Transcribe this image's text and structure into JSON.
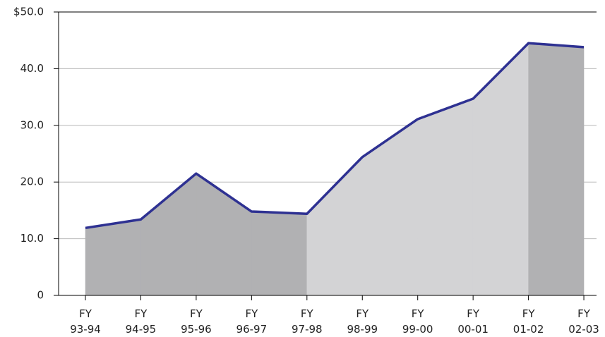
{
  "chart_data": {
    "type": "area",
    "categories": [
      "FY\n93-94",
      "FY\n94-95",
      "FY\n95-96",
      "FY\n96-97",
      "FY\n97-98",
      "FY\n98-99",
      "FY\n99-00",
      "FY\n00-01",
      "FY\n01-02",
      "FY\n02-03"
    ],
    "values": [
      11.9,
      13.4,
      21.5,
      14.8,
      14.4,
      24.4,
      31.1,
      34.7,
      44.5,
      43.8
    ],
    "color": "#2e3192",
    "segment_colors": [
      "#b1b1b3",
      "#b1b1b3",
      "#b1b1b3",
      "#b1b1b3",
      "#d3d3d5",
      "#d3d3d5",
      "#d3d3d5",
      "#d3d3d5",
      "#b1b1b3"
    ],
    "ylim": [
      0,
      50
    ],
    "yticks": [
      0,
      {
        "value": 10,
        "label": "10.0"
      },
      {
        "value": 20,
        "label": "20.0"
      },
      {
        "value": 30,
        "label": "30.0"
      },
      {
        "value": 40,
        "label": "40.0"
      },
      {
        "value": 50,
        "label": "$50.0"
      }
    ],
    "grid": true
  }
}
